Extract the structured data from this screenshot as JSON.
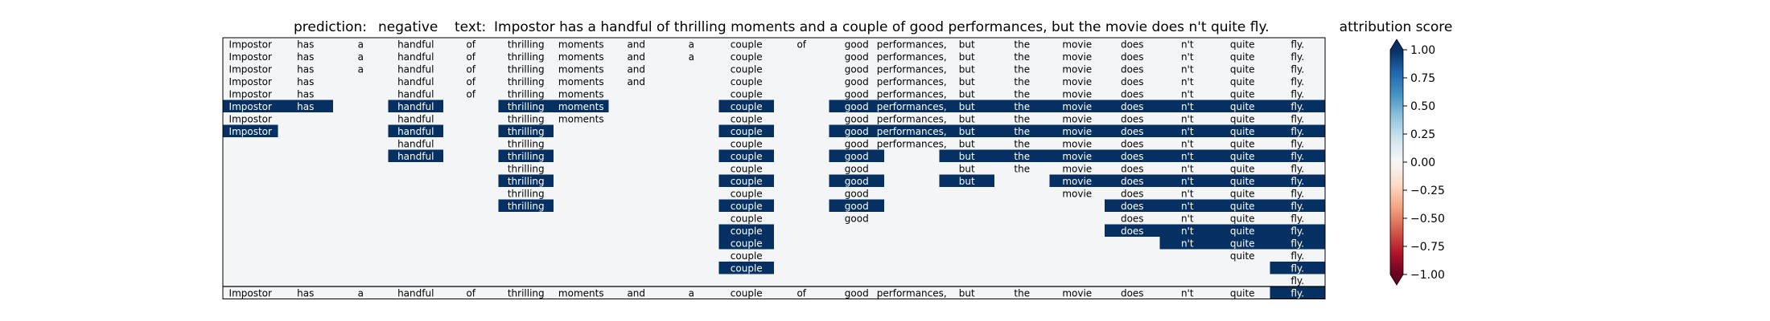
{
  "header": {
    "prediction_label": "prediction:",
    "prediction_value": "negative",
    "text_label": "text:",
    "text_value": "Impostor has a handful of thrilling moments and a couple of good performances, but the movie does n't quite fly."
  },
  "colorbar": {
    "title": "attribution score",
    "ticks": [
      "1.00",
      "0.75",
      "0.50",
      "0.25",
      "0.00",
      "−0.25",
      "−0.50",
      "−0.75",
      "−1.00"
    ],
    "tick_values": [
      1.0,
      0.75,
      0.5,
      0.25,
      0.0,
      -0.25,
      -0.5,
      -0.75,
      -1.0
    ],
    "range": [
      -1.0,
      1.0
    ],
    "colormap": "RdBu"
  },
  "chart_data": {
    "type": "heatmap",
    "tokens": [
      "Impostor",
      "has",
      "a",
      "handful",
      "of",
      "thrilling",
      "moments",
      "and",
      "a",
      "couple",
      "of",
      "good",
      "performances,",
      "but",
      "the",
      "movie",
      "does",
      "n't",
      "quite",
      "fly."
    ],
    "rows": [
      {
        "present": [
          1,
          1,
          1,
          1,
          1,
          1,
          1,
          1,
          1,
          1,
          1,
          1,
          1,
          1,
          1,
          1,
          1,
          1,
          1,
          1
        ],
        "highlight": []
      },
      {
        "present": [
          1,
          1,
          1,
          1,
          1,
          1,
          1,
          1,
          1,
          1,
          0,
          1,
          1,
          1,
          1,
          1,
          1,
          1,
          1,
          1
        ],
        "highlight": []
      },
      {
        "present": [
          1,
          1,
          1,
          1,
          1,
          1,
          1,
          1,
          0,
          1,
          0,
          1,
          1,
          1,
          1,
          1,
          1,
          1,
          1,
          1
        ],
        "highlight": []
      },
      {
        "present": [
          1,
          1,
          0,
          1,
          1,
          1,
          1,
          1,
          0,
          1,
          0,
          1,
          1,
          1,
          1,
          1,
          1,
          1,
          1,
          1
        ],
        "highlight": []
      },
      {
        "present": [
          1,
          1,
          0,
          1,
          1,
          1,
          1,
          0,
          0,
          1,
          0,
          1,
          1,
          1,
          1,
          1,
          1,
          1,
          1,
          1
        ],
        "highlight": []
      },
      {
        "present": [
          1,
          1,
          0,
          1,
          0,
          1,
          1,
          0,
          0,
          1,
          0,
          1,
          1,
          1,
          1,
          1,
          1,
          1,
          1,
          1
        ],
        "highlight": [
          0,
          1,
          3,
          5,
          6,
          9,
          11,
          12,
          13,
          14,
          15,
          16,
          17,
          18,
          19
        ]
      },
      {
        "present": [
          1,
          0,
          0,
          1,
          0,
          1,
          1,
          0,
          0,
          1,
          0,
          1,
          1,
          1,
          1,
          1,
          1,
          1,
          1,
          1
        ],
        "highlight": []
      },
      {
        "present": [
          1,
          0,
          0,
          1,
          0,
          1,
          0,
          0,
          0,
          1,
          0,
          1,
          1,
          1,
          1,
          1,
          1,
          1,
          1,
          1
        ],
        "highlight": [
          0,
          3,
          5,
          9,
          11,
          12,
          13,
          14,
          15,
          16,
          17,
          18,
          19
        ]
      },
      {
        "present": [
          0,
          0,
          0,
          1,
          0,
          1,
          0,
          0,
          0,
          1,
          0,
          1,
          1,
          1,
          1,
          1,
          1,
          1,
          1,
          1
        ],
        "highlight": []
      },
      {
        "present": [
          0,
          0,
          0,
          1,
          0,
          1,
          0,
          0,
          0,
          1,
          0,
          1,
          0,
          1,
          1,
          1,
          1,
          1,
          1,
          1
        ],
        "highlight": [
          3,
          5,
          9,
          11,
          13,
          14,
          15,
          16,
          17,
          18,
          19
        ]
      },
      {
        "present": [
          0,
          0,
          0,
          0,
          0,
          1,
          0,
          0,
          0,
          1,
          0,
          1,
          0,
          1,
          1,
          1,
          1,
          1,
          1,
          1
        ],
        "highlight": []
      },
      {
        "present": [
          0,
          0,
          0,
          0,
          0,
          1,
          0,
          0,
          0,
          1,
          0,
          1,
          0,
          1,
          0,
          1,
          1,
          1,
          1,
          1
        ],
        "highlight": [
          5,
          9,
          11,
          13,
          15,
          16,
          17,
          18,
          19
        ]
      },
      {
        "present": [
          0,
          0,
          0,
          0,
          0,
          1,
          0,
          0,
          0,
          1,
          0,
          1,
          0,
          0,
          0,
          1,
          1,
          1,
          1,
          1
        ],
        "highlight": []
      },
      {
        "present": [
          0,
          0,
          0,
          0,
          0,
          1,
          0,
          0,
          0,
          1,
          0,
          1,
          0,
          0,
          0,
          0,
          1,
          1,
          1,
          1
        ],
        "highlight": [
          5,
          9,
          11,
          16,
          17,
          18,
          19
        ]
      },
      {
        "present": [
          0,
          0,
          0,
          0,
          0,
          0,
          0,
          0,
          0,
          1,
          0,
          1,
          0,
          0,
          0,
          0,
          1,
          1,
          1,
          1
        ],
        "highlight": []
      },
      {
        "present": [
          0,
          0,
          0,
          0,
          0,
          0,
          0,
          0,
          0,
          1,
          0,
          0,
          0,
          0,
          0,
          0,
          1,
          1,
          1,
          1
        ],
        "highlight": [
          9,
          16,
          17,
          18,
          19
        ]
      },
      {
        "present": [
          0,
          0,
          0,
          0,
          0,
          0,
          0,
          0,
          0,
          1,
          0,
          0,
          0,
          0,
          0,
          0,
          0,
          1,
          1,
          1
        ],
        "highlight": [
          9,
          17,
          18,
          19
        ]
      },
      {
        "present": [
          0,
          0,
          0,
          0,
          0,
          0,
          0,
          0,
          0,
          1,
          0,
          0,
          0,
          0,
          0,
          0,
          0,
          0,
          1,
          1
        ],
        "highlight": []
      },
      {
        "present": [
          0,
          0,
          0,
          0,
          0,
          0,
          0,
          0,
          0,
          1,
          0,
          0,
          0,
          0,
          0,
          0,
          0,
          0,
          0,
          1
        ],
        "highlight": [
          9,
          19
        ]
      },
      {
        "present": [
          0,
          0,
          0,
          0,
          0,
          0,
          0,
          0,
          0,
          0,
          0,
          0,
          0,
          0,
          0,
          0,
          0,
          0,
          0,
          1
        ],
        "highlight": []
      },
      {
        "present": [
          1,
          1,
          1,
          1,
          1,
          1,
          1,
          1,
          1,
          1,
          1,
          1,
          1,
          1,
          1,
          1,
          1,
          1,
          1,
          1
        ],
        "highlight": [
          19
        ]
      }
    ],
    "highlight_score": 1.0,
    "background_score": 0.02
  }
}
